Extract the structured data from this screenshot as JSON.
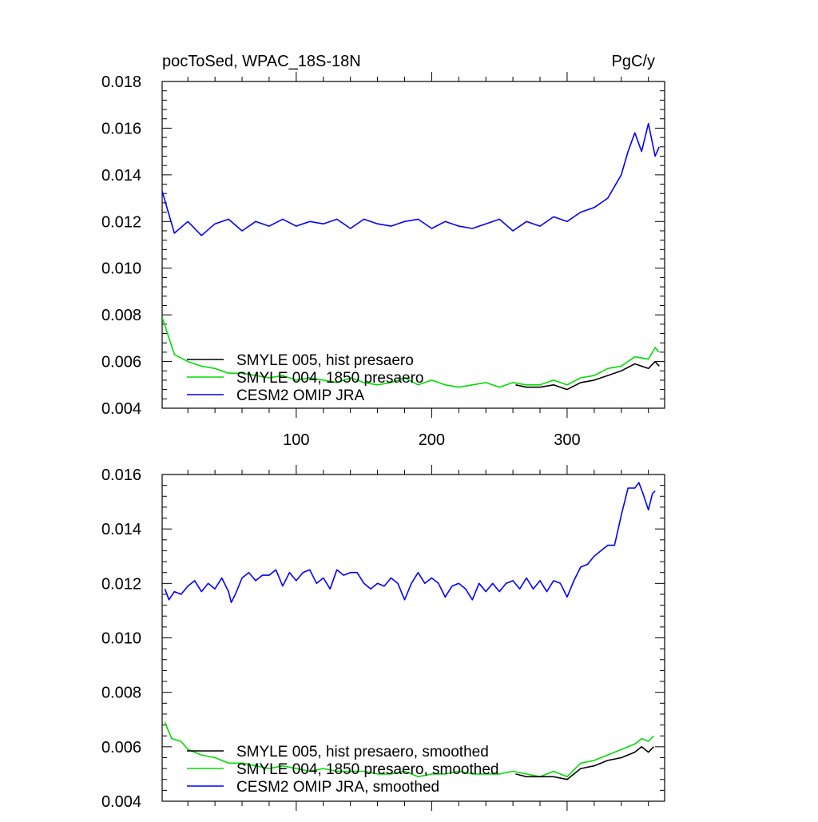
{
  "chart_data": [
    {
      "type": "line",
      "title_left": "pocToSed, WPAC_18S-18N",
      "title_right": "PgC/y",
      "xlim": [
        1,
        372
      ],
      "ylim": [
        0.004,
        0.018
      ],
      "y_ticks": [
        0.004,
        0.006,
        0.008,
        0.01,
        0.012,
        0.014,
        0.016,
        0.018
      ],
      "y_tick_labels": [
        "0.004",
        "0.006",
        "0.008",
        "0.010",
        "0.012",
        "0.014",
        "0.016",
        "0.018"
      ],
      "x_ticks": [
        100,
        200,
        300
      ],
      "x_tick_labels": [
        "100",
        "200",
        "300"
      ],
      "legend_position": "lower-left",
      "series": [
        {
          "name": "CESM2 OMIP JRA",
          "color": "#0000ff",
          "x": [
            1,
            10,
            20,
            30,
            40,
            50,
            60,
            70,
            80,
            90,
            100,
            110,
            120,
            130,
            140,
            150,
            160,
            170,
            180,
            190,
            200,
            210,
            220,
            230,
            240,
            250,
            260,
            270,
            280,
            290,
            300,
            310,
            320,
            330,
            340,
            345,
            350,
            355,
            360,
            365,
            368
          ],
          "y": [
            0.0133,
            0.0115,
            0.012,
            0.0114,
            0.0119,
            0.0121,
            0.0116,
            0.012,
            0.0118,
            0.0121,
            0.0118,
            0.012,
            0.0119,
            0.0121,
            0.0117,
            0.0121,
            0.0119,
            0.0118,
            0.012,
            0.0121,
            0.0117,
            0.012,
            0.0118,
            0.0117,
            0.0119,
            0.0121,
            0.0116,
            0.012,
            0.0118,
            0.0122,
            0.012,
            0.0124,
            0.0126,
            0.013,
            0.014,
            0.015,
            0.0158,
            0.015,
            0.0162,
            0.0148,
            0.0152
          ]
        },
        {
          "name": "SMYLE 004, 1850 presaero",
          "color": "#00dd00",
          "x": [
            1,
            10,
            20,
            30,
            40,
            50,
            60,
            70,
            80,
            90,
            100,
            110,
            120,
            130,
            140,
            150,
            160,
            170,
            180,
            190,
            200,
            210,
            220,
            230,
            240,
            250,
            260,
            270,
            280,
            290,
            300,
            310,
            320,
            330,
            340,
            350,
            360,
            365,
            368
          ],
          "y": [
            0.0079,
            0.0063,
            0.006,
            0.0058,
            0.0057,
            0.0055,
            0.0055,
            0.0054,
            0.0053,
            0.0054,
            0.0052,
            0.0053,
            0.0052,
            0.0051,
            0.0053,
            0.0051,
            0.005,
            0.0051,
            0.0053,
            0.005,
            0.0052,
            0.005,
            0.0049,
            0.005,
            0.0051,
            0.0049,
            0.0051,
            0.005,
            0.005,
            0.0052,
            0.005,
            0.0053,
            0.0054,
            0.0057,
            0.0058,
            0.0062,
            0.0061,
            0.0066,
            0.0064
          ]
        },
        {
          "name": "SMYLE 005, hist presaero",
          "color": "#000000",
          "x": [
            262,
            270,
            280,
            290,
            300,
            310,
            320,
            330,
            340,
            350,
            360,
            365,
            368
          ],
          "y": [
            0.005,
            0.0049,
            0.0049,
            0.005,
            0.0048,
            0.0051,
            0.0052,
            0.0054,
            0.0056,
            0.0059,
            0.0057,
            0.006,
            0.0058
          ]
        }
      ]
    },
    {
      "type": "line",
      "xlim": [
        1,
        372
      ],
      "ylim": [
        0.004,
        0.016
      ],
      "y_ticks": [
        0.004,
        0.006,
        0.008,
        0.01,
        0.012,
        0.014,
        0.016
      ],
      "y_tick_labels": [
        "0.004",
        "0.006",
        "0.008",
        "0.010",
        "0.012",
        "0.014",
        "0.016"
      ],
      "x_ticks": [
        100,
        200,
        300
      ],
      "legend_position": "lower-left",
      "series": [
        {
          "name": "CESM2 OMIP JRA, smoothed",
          "color": "#0000ff",
          "x": [
            3,
            6,
            10,
            15,
            20,
            25,
            30,
            35,
            40,
            45,
            50,
            52,
            55,
            60,
            65,
            70,
            75,
            80,
            85,
            90,
            95,
            100,
            105,
            110,
            115,
            120,
            125,
            130,
            135,
            140,
            145,
            150,
            155,
            160,
            165,
            170,
            175,
            180,
            185,
            190,
            195,
            200,
            205,
            210,
            215,
            220,
            225,
            230,
            235,
            240,
            245,
            250,
            255,
            260,
            265,
            270,
            275,
            280,
            285,
            290,
            295,
            300,
            305,
            310,
            315,
            320,
            325,
            330,
            335,
            340,
            345,
            350,
            353,
            356,
            360,
            363,
            365
          ],
          "y": [
            0.0118,
            0.0114,
            0.0117,
            0.0116,
            0.0119,
            0.0121,
            0.0117,
            0.012,
            0.0118,
            0.0122,
            0.0117,
            0.0113,
            0.0116,
            0.0122,
            0.0124,
            0.0121,
            0.0123,
            0.0123,
            0.0125,
            0.0119,
            0.0124,
            0.0121,
            0.0124,
            0.0125,
            0.012,
            0.0122,
            0.0118,
            0.0125,
            0.0123,
            0.0124,
            0.0124,
            0.012,
            0.0118,
            0.012,
            0.0119,
            0.0122,
            0.012,
            0.0114,
            0.012,
            0.0124,
            0.012,
            0.0122,
            0.012,
            0.0115,
            0.0119,
            0.012,
            0.0118,
            0.0114,
            0.012,
            0.0117,
            0.012,
            0.0117,
            0.012,
            0.0121,
            0.0118,
            0.0122,
            0.0118,
            0.0121,
            0.0117,
            0.0121,
            0.012,
            0.0115,
            0.0121,
            0.0126,
            0.0127,
            0.013,
            0.0132,
            0.0134,
            0.0134,
            0.0145,
            0.0155,
            0.0155,
            0.0157,
            0.0153,
            0.0147,
            0.0153,
            0.0154
          ]
        },
        {
          "name": "SMYLE 004, 1850 presaero, smoothed",
          "color": "#00dd00",
          "x": [
            3,
            8,
            15,
            20,
            30,
            40,
            50,
            60,
            70,
            80,
            90,
            100,
            110,
            120,
            130,
            140,
            150,
            160,
            170,
            180,
            190,
            200,
            210,
            220,
            230,
            240,
            250,
            260,
            270,
            280,
            290,
            300,
            310,
            320,
            330,
            340,
            350,
            355,
            360,
            364
          ],
          "y": [
            0.0069,
            0.0063,
            0.0062,
            0.0059,
            0.0057,
            0.0056,
            0.0054,
            0.0054,
            0.0053,
            0.0052,
            0.0053,
            0.0052,
            0.0051,
            0.0052,
            0.0051,
            0.0051,
            0.0051,
            0.005,
            0.005,
            0.0051,
            0.0049,
            0.005,
            0.005,
            0.0051,
            0.005,
            0.005,
            0.005,
            0.0051,
            0.005,
            0.0049,
            0.0051,
            0.0049,
            0.0054,
            0.0055,
            0.0057,
            0.0059,
            0.0061,
            0.0063,
            0.0062,
            0.0064
          ]
        },
        {
          "name": "SMYLE 005, hist presaero, smoothed",
          "color": "#000000",
          "x": [
            262,
            270,
            280,
            290,
            300,
            310,
            320,
            330,
            340,
            350,
            355,
            360,
            364
          ],
          "y": [
            0.005,
            0.0049,
            0.0049,
            0.0049,
            0.0048,
            0.0052,
            0.0053,
            0.0055,
            0.0056,
            0.0058,
            0.006,
            0.0058,
            0.006
          ]
        }
      ]
    }
  ]
}
